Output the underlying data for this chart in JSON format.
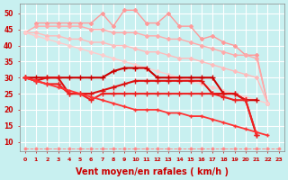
{
  "background_color": "#c8f0f0",
  "grid_color": "#aadddd",
  "xlabel": "Vent moyen/en rafales ( km/h )",
  "xlabel_color": "#cc0000",
  "xlabel_fontsize": 7,
  "xtick_labels": [
    "0",
    "1",
    "2",
    "3",
    "4",
    "5",
    "6",
    "7",
    "8",
    "9",
    "10",
    "11",
    "12",
    "13",
    "14",
    "15",
    "16",
    "17",
    "18",
    "19",
    "20",
    "21",
    "22",
    "23"
  ],
  "yticks": [
    10,
    15,
    20,
    25,
    30,
    35,
    40,
    45,
    50
  ],
  "ylim": [
    7,
    53
  ],
  "xlim": [
    -0.5,
    23.5
  ],
  "series": [
    {
      "name": "pink_spiky_top",
      "color": "#ff9999",
      "linewidth": 1.0,
      "marker": "D",
      "markersize": 2.0,
      "y": [
        null,
        47,
        47,
        47,
        47,
        47,
        47,
        50,
        46,
        51,
        51,
        47,
        47,
        50,
        46,
        46,
        42,
        43,
        41,
        40,
        37,
        37,
        22,
        null
      ]
    },
    {
      "name": "pink_diagonal_upper",
      "color": "#ffaaaa",
      "linewidth": 1.0,
      "marker": "D",
      "markersize": 2.0,
      "y": [
        44,
        46,
        46,
        46,
        46,
        46,
        45,
        45,
        44,
        44,
        44,
        43,
        43,
        42,
        42,
        41,
        40,
        39,
        38,
        37,
        37,
        36,
        22,
        null
      ]
    },
    {
      "name": "pink_diagonal_lower",
      "color": "#ffbbbb",
      "linewidth": 1.0,
      "marker": "D",
      "markersize": 2.0,
      "y": [
        44,
        44,
        43,
        43,
        42,
        42,
        41,
        41,
        40,
        40,
        39,
        38,
        38,
        37,
        36,
        36,
        35,
        34,
        33,
        32,
        31,
        30,
        22,
        null
      ]
    },
    {
      "name": "pink_lowest_diagonal",
      "color": "#ffcccc",
      "linewidth": 1.0,
      "marker": "D",
      "markersize": 2.0,
      "y": [
        44,
        43,
        42,
        41,
        40,
        39,
        38,
        37,
        36,
        35,
        34,
        33,
        32,
        31,
        30,
        29,
        28,
        27,
        26,
        25,
        24,
        23,
        22,
        null
      ]
    },
    {
      "name": "dashed_bottom",
      "color": "#ff8888",
      "linewidth": 0.7,
      "linestyle": "--",
      "marker": "D",
      "markersize": 1.5,
      "y": [
        8,
        8,
        8,
        8,
        8,
        8,
        8,
        8,
        8,
        8,
        8,
        8,
        8,
        8,
        8,
        8,
        8,
        8,
        8,
        8,
        8,
        8,
        8,
        8
      ]
    },
    {
      "name": "red_flat_upper",
      "color": "#cc0000",
      "linewidth": 1.5,
      "marker": "+",
      "markersize": 4,
      "y": [
        30,
        30,
        30,
        30,
        30,
        30,
        30,
        30,
        32,
        33,
        33,
        33,
        30,
        30,
        30,
        30,
        30,
        30,
        25,
        25,
        23,
        23,
        null,
        null
      ]
    },
    {
      "name": "red_mid",
      "color": "#dd1111",
      "linewidth": 1.5,
      "marker": "+",
      "markersize": 4,
      "y": [
        30,
        29,
        30,
        30,
        25,
        25,
        25,
        26,
        27,
        28,
        29,
        29,
        29,
        29,
        29,
        29,
        29,
        25,
        25,
        25,
        23,
        12,
        null,
        null
      ]
    },
    {
      "name": "red_lower_bend",
      "color": "#ee2222",
      "linewidth": 1.5,
      "marker": "+",
      "markersize": 4,
      "y": [
        30,
        29,
        28,
        28,
        25,
        25,
        23,
        25,
        25,
        25,
        25,
        25,
        25,
        25,
        25,
        25,
        25,
        25,
        24,
        23,
        23,
        12,
        null,
        null
      ]
    },
    {
      "name": "red_long_diagonal",
      "color": "#ff3333",
      "linewidth": 1.3,
      "marker": "+",
      "markersize": 3,
      "y": [
        30,
        29,
        28,
        27,
        26,
        25,
        24,
        23,
        22,
        21,
        20,
        20,
        20,
        19,
        19,
        18,
        18,
        17,
        16,
        15,
        14,
        13,
        12,
        null
      ]
    }
  ]
}
